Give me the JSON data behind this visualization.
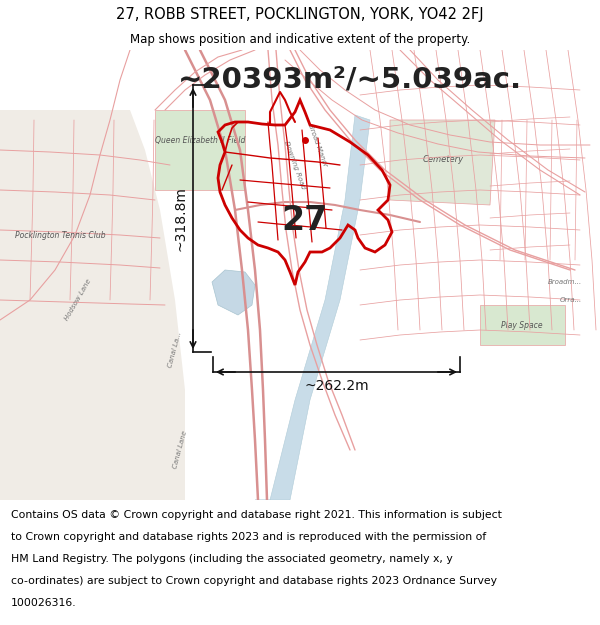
{
  "title_line1": "27, ROBB STREET, POCKLINGTON, YORK, YO42 2FJ",
  "title_line2": "Map shows position and indicative extent of the property.",
  "area_text": "~20393m²/~5.039ac.",
  "label_number": "27",
  "dim_horizontal": "~262.2m",
  "dim_vertical": "~318.8m",
  "footer_lines": [
    "Contains OS data © Crown copyright and database right 2021. This information is subject",
    "to Crown copyright and database rights 2023 and is reproduced with the permission of",
    "HM Land Registry. The polygons (including the associated geometry, namely x, y",
    "co-ordinates) are subject to Crown copyright and database rights 2023 Ordnance Survey",
    "100026316."
  ],
  "bg_map": "#f2ede8",
  "bg_white": "#f8f4f0",
  "bg_header_footer": "#ffffff",
  "road_color": "#e8a0a0",
  "road_fill": "#f5e8e8",
  "highlight_color": "#cc0000",
  "green_color": "#d8e8d0",
  "green_dark": "#c8dfc0",
  "water_color": "#c8dce8",
  "water_light": "#dce8f0",
  "dim_color": "#111111",
  "label_color": "#222222",
  "map_text_color": "#888888",
  "header_fontsize": 10.5,
  "subtitle_fontsize": 8.5,
  "area_fontsize": 21,
  "label_fontsize": 24,
  "dim_fontsize": 10,
  "footer_fontsize": 7.8,
  "map_label_fontsize": 6.5
}
